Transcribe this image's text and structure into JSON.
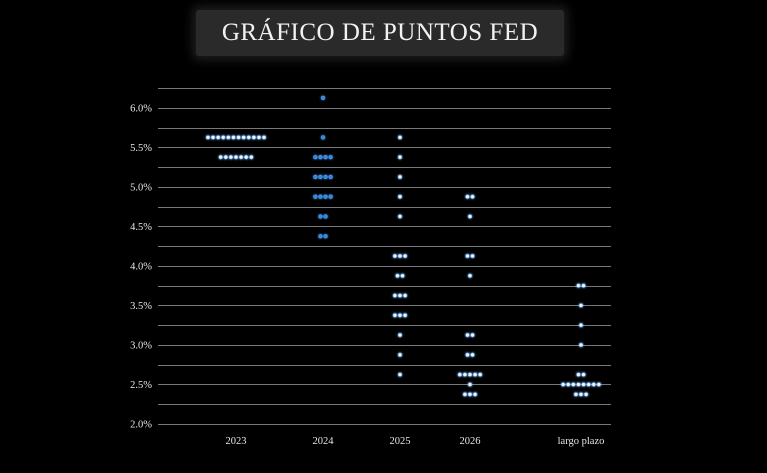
{
  "title": "GRÁFICO DE PUNTOS FED",
  "chart_data": {
    "type": "scatter",
    "title": "GRÁFICO DE PUNTOS FED",
    "xlabel": "",
    "ylabel": "",
    "categories": [
      "2023",
      "2024",
      "2025",
      "2026",
      "largo plazo"
    ],
    "y_ticks": [
      "2.0%",
      "2.5%",
      "3.0%",
      "3.5%",
      "4.0%",
      "4.5%",
      "5.0%",
      "5.5%",
      "6.0%"
    ],
    "ylim": [
      2.0,
      6.25
    ],
    "grid": true,
    "dots": [
      {
        "category": "2023",
        "y": 5.625,
        "count": 12
      },
      {
        "category": "2023",
        "y": 5.375,
        "count": 7
      },
      {
        "category": "2024",
        "y": 6.125,
        "count": 1
      },
      {
        "category": "2024",
        "y": 5.625,
        "count": 1
      },
      {
        "category": "2024",
        "y": 5.375,
        "count": 4
      },
      {
        "category": "2024",
        "y": 5.125,
        "count": 4
      },
      {
        "category": "2024",
        "y": 4.875,
        "count": 4
      },
      {
        "category": "2024",
        "y": 4.625,
        "count": 2
      },
      {
        "category": "2024",
        "y": 4.375,
        "count": 2
      },
      {
        "category": "2025",
        "y": 5.625,
        "count": 1
      },
      {
        "category": "2025",
        "y": 5.375,
        "count": 1
      },
      {
        "category": "2025",
        "y": 5.125,
        "count": 1
      },
      {
        "category": "2025",
        "y": 4.875,
        "count": 1
      },
      {
        "category": "2025",
        "y": 4.625,
        "count": 1
      },
      {
        "category": "2025",
        "y": 4.125,
        "count": 3
      },
      {
        "category": "2025",
        "y": 3.875,
        "count": 2
      },
      {
        "category": "2025",
        "y": 3.625,
        "count": 3
      },
      {
        "category": "2025",
        "y": 3.375,
        "count": 3
      },
      {
        "category": "2025",
        "y": 3.125,
        "count": 1
      },
      {
        "category": "2025",
        "y": 2.875,
        "count": 1
      },
      {
        "category": "2025",
        "y": 2.625,
        "count": 1
      },
      {
        "category": "2026",
        "y": 4.875,
        "count": 2
      },
      {
        "category": "2026",
        "y": 4.625,
        "count": 1
      },
      {
        "category": "2026",
        "y": 4.125,
        "count": 2
      },
      {
        "category": "2026",
        "y": 3.875,
        "count": 1
      },
      {
        "category": "2026",
        "y": 3.125,
        "count": 2
      },
      {
        "category": "2026",
        "y": 2.875,
        "count": 2
      },
      {
        "category": "2026",
        "y": 2.625,
        "count": 5
      },
      {
        "category": "2026",
        "y": 2.5,
        "count": 1
      },
      {
        "category": "2026",
        "y": 2.375,
        "count": 3
      },
      {
        "category": "largo plazo",
        "y": 3.75,
        "count": 2
      },
      {
        "category": "largo plazo",
        "y": 3.5,
        "count": 1
      },
      {
        "category": "largo plazo",
        "y": 3.25,
        "count": 1
      },
      {
        "category": "largo plazo",
        "y": 3.0,
        "count": 1
      },
      {
        "category": "largo plazo",
        "y": 2.625,
        "count": 2
      },
      {
        "category": "largo plazo",
        "y": 2.5,
        "count": 8
      },
      {
        "category": "largo plazo",
        "y": 2.375,
        "count": 3
      }
    ],
    "colors": {
      "background": "#000000",
      "gridline": "#d6d6d6",
      "text": "#e6e6e6",
      "dot_blue": "#2f86e0",
      "dot_light": "#eaf6ff",
      "dot_glow": "#4aa3ff"
    },
    "highlight_category": "2024"
  }
}
